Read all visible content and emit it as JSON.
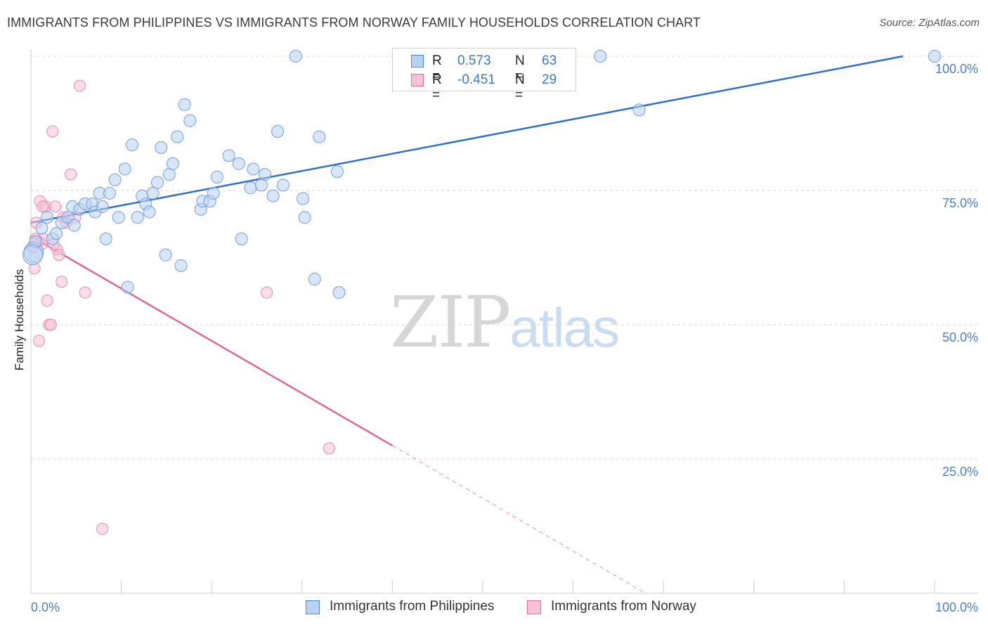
{
  "title": "IMMIGRANTS FROM PHILIPPINES VS IMMIGRANTS FROM NORWAY FAMILY HOUSEHOLDS CORRELATION CHART",
  "source": "Source: ZipAtlas.com",
  "watermark": {
    "zip": "ZIP",
    "atlas": "atlas"
  },
  "legend": {
    "rows": [
      {
        "r_label": "R =",
        "r_value": "0.573",
        "n_label": "N =",
        "n_value": "63"
      },
      {
        "r_label": "R =",
        "r_value": "-0.451",
        "n_label": "N =",
        "n_value": "29"
      }
    ]
  },
  "bottom_legend": [
    "Immigrants from Philippines",
    "Immigrants from Norway"
  ],
  "chart_data": {
    "type": "scatter",
    "title": "IMMIGRANTS FROM PHILIPPINES VS IMMIGRANTS FROM NORWAY FAMILY HOUSEHOLDS CORRELATION CHART",
    "xlabel": "",
    "ylabel": "Family Households",
    "xlim": [
      0,
      105
    ],
    "ylim": [
      0,
      103
    ],
    "x_tick_labels": [
      "0.0%",
      "100.0%"
    ],
    "y_tick_labels": [
      "25.0%",
      "50.0%",
      "75.0%",
      "100.0%"
    ],
    "y_ticks": [
      25,
      50,
      75,
      100
    ],
    "grid": true,
    "legend_position": "top-center",
    "colors": {
      "philippines": "#4a86d8",
      "norway": "#e36d97",
      "philippines_fill": "#b9d1f2",
      "norway_fill": "#f7c3d4"
    },
    "series": [
      {
        "name": "Immigrants from Philippines",
        "color": "#4a86d8",
        "points": [
          [
            0.3,
            63.5
          ],
          [
            0.5,
            65.5
          ],
          [
            1.2,
            68
          ],
          [
            1.8,
            70
          ],
          [
            2.4,
            66
          ],
          [
            2.8,
            67
          ],
          [
            3.4,
            69
          ],
          [
            4.1,
            70
          ],
          [
            4.6,
            72
          ],
          [
            4.8,
            68.5
          ],
          [
            5.4,
            71.5
          ],
          [
            6.0,
            72.5
          ],
          [
            6.8,
            72.5
          ],
          [
            7.1,
            71
          ],
          [
            7.6,
            74.5
          ],
          [
            7.9,
            72
          ],
          [
            8.3,
            66
          ],
          [
            8.7,
            74.5
          ],
          [
            9.3,
            77
          ],
          [
            9.7,
            70
          ],
          [
            10.4,
            79
          ],
          [
            10.7,
            57
          ],
          [
            11.2,
            83.5
          ],
          [
            11.8,
            70
          ],
          [
            12.3,
            74
          ],
          [
            12.7,
            72.5
          ],
          [
            13.1,
            71
          ],
          [
            13.5,
            74.5
          ],
          [
            14.0,
            76.5
          ],
          [
            14.4,
            83
          ],
          [
            14.9,
            63
          ],
          [
            15.3,
            78
          ],
          [
            15.7,
            80
          ],
          [
            16.2,
            85
          ],
          [
            16.6,
            61
          ],
          [
            17.0,
            91
          ],
          [
            17.6,
            88
          ],
          [
            18.8,
            71.5
          ],
          [
            19.0,
            73
          ],
          [
            19.8,
            73
          ],
          [
            20.2,
            74.5
          ],
          [
            20.6,
            77.5
          ],
          [
            21.9,
            81.5
          ],
          [
            23.0,
            80
          ],
          [
            23.3,
            66
          ],
          [
            24.3,
            75.5
          ],
          [
            24.6,
            79
          ],
          [
            25.5,
            76
          ],
          [
            25.9,
            78
          ],
          [
            26.8,
            74
          ],
          [
            27.3,
            86
          ],
          [
            27.9,
            76
          ],
          [
            29.3,
            100
          ],
          [
            30.1,
            73.5
          ],
          [
            30.3,
            70
          ],
          [
            31.4,
            58.5
          ],
          [
            31.9,
            85
          ],
          [
            33.9,
            78.5
          ],
          [
            34.1,
            56
          ],
          [
            63.0,
            100
          ],
          [
            67.3,
            90
          ],
          [
            100.0,
            100
          ],
          [
            0.2,
            63
          ]
        ],
        "trend": {
          "x0": 0,
          "y0": 69,
          "x1": 96.5,
          "y1": 100
        }
      },
      {
        "name": "Immigrants from Norway",
        "color": "#e36d97",
        "points": [
          [
            0.2,
            64.5
          ],
          [
            0.4,
            60.5
          ],
          [
            0.6,
            69
          ],
          [
            0.9,
            47
          ],
          [
            1.0,
            73
          ],
          [
            1.2,
            65
          ],
          [
            1.4,
            66
          ],
          [
            1.6,
            72
          ],
          [
            1.8,
            54.5
          ],
          [
            2.0,
            50
          ],
          [
            2.2,
            50
          ],
          [
            2.4,
            86
          ],
          [
            2.7,
            72
          ],
          [
            2.9,
            64
          ],
          [
            3.1,
            63
          ],
          [
            3.4,
            58
          ],
          [
            3.6,
            70
          ],
          [
            3.9,
            69
          ],
          [
            4.4,
            78
          ],
          [
            4.9,
            70
          ],
          [
            5.4,
            94.5
          ],
          [
            6.0,
            56
          ],
          [
            7.9,
            12
          ],
          [
            26.1,
            56
          ],
          [
            33.0,
            27
          ],
          [
            1.3,
            72
          ],
          [
            0.8,
            65.5
          ],
          [
            2.5,
            65
          ],
          [
            0.5,
            66
          ]
        ],
        "trend": {
          "x0": 0,
          "y0": 66.5,
          "x1": 40,
          "y1": 27.5
        },
        "trend_extension": {
          "x0": 40,
          "y0": 27.5,
          "x1": 68,
          "y1": 0
        }
      }
    ]
  }
}
